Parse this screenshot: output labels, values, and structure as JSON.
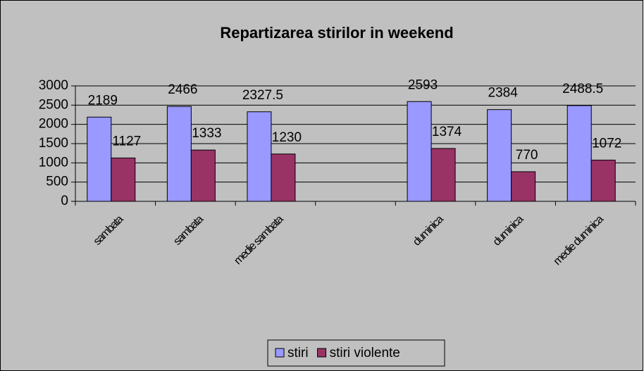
{
  "chart_data": {
    "type": "bar",
    "title": "Repartizarea stirilor in weekend",
    "categories": [
      "sambata",
      "sambata",
      "medie sambata",
      null,
      "duminica",
      "duminica",
      "medie duminica"
    ],
    "series": [
      {
        "name": "stiri",
        "color": "#9999ff",
        "values": [
          2189,
          2466,
          2327.5,
          null,
          2593,
          2384,
          2488.5
        ]
      },
      {
        "name": "stiri violente",
        "color": "#993366",
        "values": [
          1127,
          1333,
          1230,
          null,
          1374,
          770,
          1072
        ]
      }
    ],
    "ylim": [
      0,
      3000
    ],
    "yticks": [
      0,
      500,
      1000,
      1500,
      2000,
      2500,
      3000
    ],
    "grid": true,
    "legend": "bottom"
  }
}
